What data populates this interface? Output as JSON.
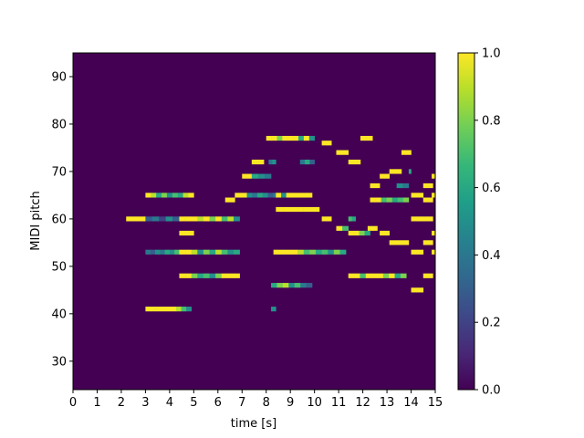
{
  "chart_data": {
    "type": "heatmap",
    "title": "",
    "xlabel": "time [s]",
    "ylabel": "MIDI pitch",
    "xlim": [
      0,
      15
    ],
    "ylim": [
      24,
      95
    ],
    "xticks": [
      0,
      1,
      2,
      3,
      4,
      5,
      6,
      7,
      8,
      9,
      10,
      11,
      12,
      13,
      14,
      15
    ],
    "yticks": [
      30,
      40,
      50,
      60,
      70,
      80,
      90
    ],
    "colorbar": {
      "range": [
        0,
        1
      ],
      "ticks": [
        0.0,
        0.2,
        0.4,
        0.6,
        0.8,
        1.0
      ],
      "tick_labels": [
        "0.0",
        "0.2",
        "0.4",
        "0.6",
        "0.8",
        "1.0"
      ],
      "colormap": "viridis"
    },
    "background_value": 0.0,
    "colors": {
      "viridis": [
        "#440154",
        "#482878",
        "#3e4989",
        "#31688e",
        "#26828e",
        "#1f9e89",
        "#35b779",
        "#6ece58",
        "#b5de2b",
        "#fde725"
      ]
    },
    "notes": [
      {
        "pitch": 41,
        "start": 3.0,
        "end": 4.9,
        "values": [
          1,
          1,
          1,
          1,
          1,
          1,
          0.9,
          0.7,
          0.5
        ]
      },
      {
        "pitch": 48,
        "start": 4.4,
        "end": 6.9,
        "values": [
          1,
          1,
          0.8,
          0.6,
          0.7,
          0.5,
          0.8,
          1,
          1,
          1
        ]
      },
      {
        "pitch": 53,
        "start": 3.0,
        "end": 4.4,
        "values": [
          0.4,
          0.3,
          0.5,
          0.4,
          0.6,
          0.5,
          0.7
        ]
      },
      {
        "pitch": 53,
        "start": 4.4,
        "end": 6.9,
        "values": [
          1,
          1,
          0.9,
          0.5,
          0.8,
          0.6,
          0.9,
          0.7,
          0.5,
          0.6
        ]
      },
      {
        "pitch": 57,
        "start": 4.4,
        "end": 5.0,
        "values": [
          1,
          1,
          1
        ]
      },
      {
        "pitch": 60,
        "start": 2.2,
        "end": 3.0,
        "values": [
          1,
          1,
          1,
          1
        ]
      },
      {
        "pitch": 60,
        "start": 3.0,
        "end": 4.4,
        "values": [
          0.3,
          0.4,
          0.2,
          0.5,
          0.3
        ]
      },
      {
        "pitch": 60,
        "start": 4.4,
        "end": 6.9,
        "values": [
          1,
          1,
          1,
          0.9,
          1,
          0.8,
          1,
          0.7,
          0.9,
          0.5
        ]
      },
      {
        "pitch": 65,
        "start": 3.0,
        "end": 5.0,
        "values": [
          1,
          0.9,
          0.6,
          0.8,
          0.5,
          0.7,
          0.6,
          0.9,
          1
        ]
      },
      {
        "pitch": 64,
        "start": 6.3,
        "end": 6.7,
        "values": [
          1,
          1
        ]
      },
      {
        "pitch": 65,
        "start": 6.7,
        "end": 7.2,
        "values": [
          1,
          1
        ]
      },
      {
        "pitch": 65,
        "start": 7.2,
        "end": 8.5,
        "values": [
          0.5,
          0.4,
          0.6,
          0.5,
          0.3,
          0.4
        ]
      },
      {
        "pitch": 69,
        "start": 7.0,
        "end": 7.4,
        "values": [
          1,
          1
        ]
      },
      {
        "pitch": 69,
        "start": 7.4,
        "end": 8.2,
        "values": [
          0.6,
          0.5,
          0.4
        ]
      },
      {
        "pitch": 72,
        "start": 7.4,
        "end": 7.9,
        "values": [
          1,
          1
        ]
      },
      {
        "pitch": 72,
        "start": 8.1,
        "end": 8.4,
        "values": [
          0.4,
          0.5
        ]
      },
      {
        "pitch": 77,
        "start": 8.0,
        "end": 10.0,
        "values": [
          1,
          1,
          0.8,
          1,
          1,
          1,
          0.6,
          1,
          0.5
        ]
      },
      {
        "pitch": 65,
        "start": 8.4,
        "end": 9.9,
        "values": [
          1,
          0.5,
          1,
          1,
          1,
          1,
          1
        ]
      },
      {
        "pitch": 62,
        "start": 8.4,
        "end": 10.2,
        "values": [
          1,
          1,
          1,
          1,
          1,
          1,
          1,
          1
        ]
      },
      {
        "pitch": 53,
        "start": 8.3,
        "end": 11.3,
        "values": [
          1,
          1,
          1,
          1,
          0.9,
          0.7,
          0.8,
          0.6,
          0.7,
          0.5,
          0.8,
          0.6
        ]
      },
      {
        "pitch": 46,
        "start": 8.2,
        "end": 9.9,
        "values": [
          0.6,
          0.8,
          0.9,
          0.5,
          0.7,
          0.4,
          0.3
        ]
      },
      {
        "pitch": 41,
        "start": 8.2,
        "end": 8.4,
        "values": [
          0.5
        ]
      },
      {
        "pitch": 72,
        "start": 9.4,
        "end": 10.0,
        "values": [
          0.4,
          0.6,
          0.3
        ]
      },
      {
        "pitch": 76,
        "start": 10.3,
        "end": 10.7,
        "values": [
          1,
          1
        ]
      },
      {
        "pitch": 60,
        "start": 10.3,
        "end": 10.7,
        "values": [
          1,
          1
        ]
      },
      {
        "pitch": 74,
        "start": 10.9,
        "end": 11.4,
        "values": [
          1,
          1
        ]
      },
      {
        "pitch": 58,
        "start": 10.9,
        "end": 11.4,
        "values": [
          1,
          0.7
        ]
      },
      {
        "pitch": 72,
        "start": 11.4,
        "end": 11.9,
        "values": [
          1,
          1
        ]
      },
      {
        "pitch": 60,
        "start": 11.4,
        "end": 11.7,
        "values": [
          0.7,
          0.6
        ]
      },
      {
        "pitch": 57,
        "start": 11.4,
        "end": 12.3,
        "values": [
          1,
          1,
          0.8,
          0.6
        ]
      },
      {
        "pitch": 48,
        "start": 11.4,
        "end": 13.8,
        "values": [
          1,
          1,
          0.7,
          1,
          1,
          1,
          0.8,
          1,
          0.6,
          0.8
        ]
      },
      {
        "pitch": 77,
        "start": 11.9,
        "end": 12.4,
        "values": [
          1,
          1
        ]
      },
      {
        "pitch": 58,
        "start": 12.2,
        "end": 12.6,
        "values": [
          1,
          1
        ]
      },
      {
        "pitch": 67,
        "start": 12.3,
        "end": 12.7,
        "values": [
          1,
          1
        ]
      },
      {
        "pitch": 64,
        "start": 12.3,
        "end": 13.9,
        "values": [
          1,
          1,
          0.7,
          0.8,
          0.6,
          0.7,
          0.8
        ]
      },
      {
        "pitch": 69,
        "start": 12.7,
        "end": 13.1,
        "values": [
          1,
          1
        ]
      },
      {
        "pitch": 57,
        "start": 12.7,
        "end": 13.1,
        "values": [
          1,
          1
        ]
      },
      {
        "pitch": 70,
        "start": 13.1,
        "end": 13.6,
        "values": [
          1,
          1
        ]
      },
      {
        "pitch": 55,
        "start": 13.1,
        "end": 13.9,
        "values": [
          1,
          1,
          1
        ]
      },
      {
        "pitch": 67,
        "start": 13.4,
        "end": 13.9,
        "values": [
          0.5,
          0.4
        ]
      },
      {
        "pitch": 74,
        "start": 13.6,
        "end": 14.0,
        "values": [
          1,
          1
        ]
      },
      {
        "pitch": 70,
        "start": 13.9,
        "end": 14.0,
        "values": [
          0.6
        ]
      },
      {
        "pitch": 65,
        "start": 14.0,
        "end": 14.5,
        "values": [
          1,
          1
        ]
      },
      {
        "pitch": 60,
        "start": 14.0,
        "end": 14.9,
        "values": [
          1,
          1,
          1,
          1
        ]
      },
      {
        "pitch": 53,
        "start": 14.0,
        "end": 14.5,
        "values": [
          1,
          1
        ]
      },
      {
        "pitch": 45,
        "start": 14.0,
        "end": 14.5,
        "values": [
          1,
          1
        ]
      },
      {
        "pitch": 67,
        "start": 14.5,
        "end": 14.9,
        "values": [
          1,
          1
        ]
      },
      {
        "pitch": 64,
        "start": 14.5,
        "end": 14.9,
        "values": [
          1,
          1
        ]
      },
      {
        "pitch": 55,
        "start": 14.5,
        "end": 14.9,
        "values": [
          1,
          1
        ]
      },
      {
        "pitch": 48,
        "start": 14.5,
        "end": 14.9,
        "values": [
          1,
          1
        ]
      },
      {
        "pitch": 69,
        "start": 14.85,
        "end": 15.0,
        "values": [
          1
        ]
      },
      {
        "pitch": 65,
        "start": 14.85,
        "end": 15.0,
        "values": [
          1
        ]
      },
      {
        "pitch": 57,
        "start": 14.85,
        "end": 15.0,
        "values": [
          1
        ]
      },
      {
        "pitch": 53,
        "start": 14.85,
        "end": 15.0,
        "values": [
          1
        ]
      }
    ]
  }
}
